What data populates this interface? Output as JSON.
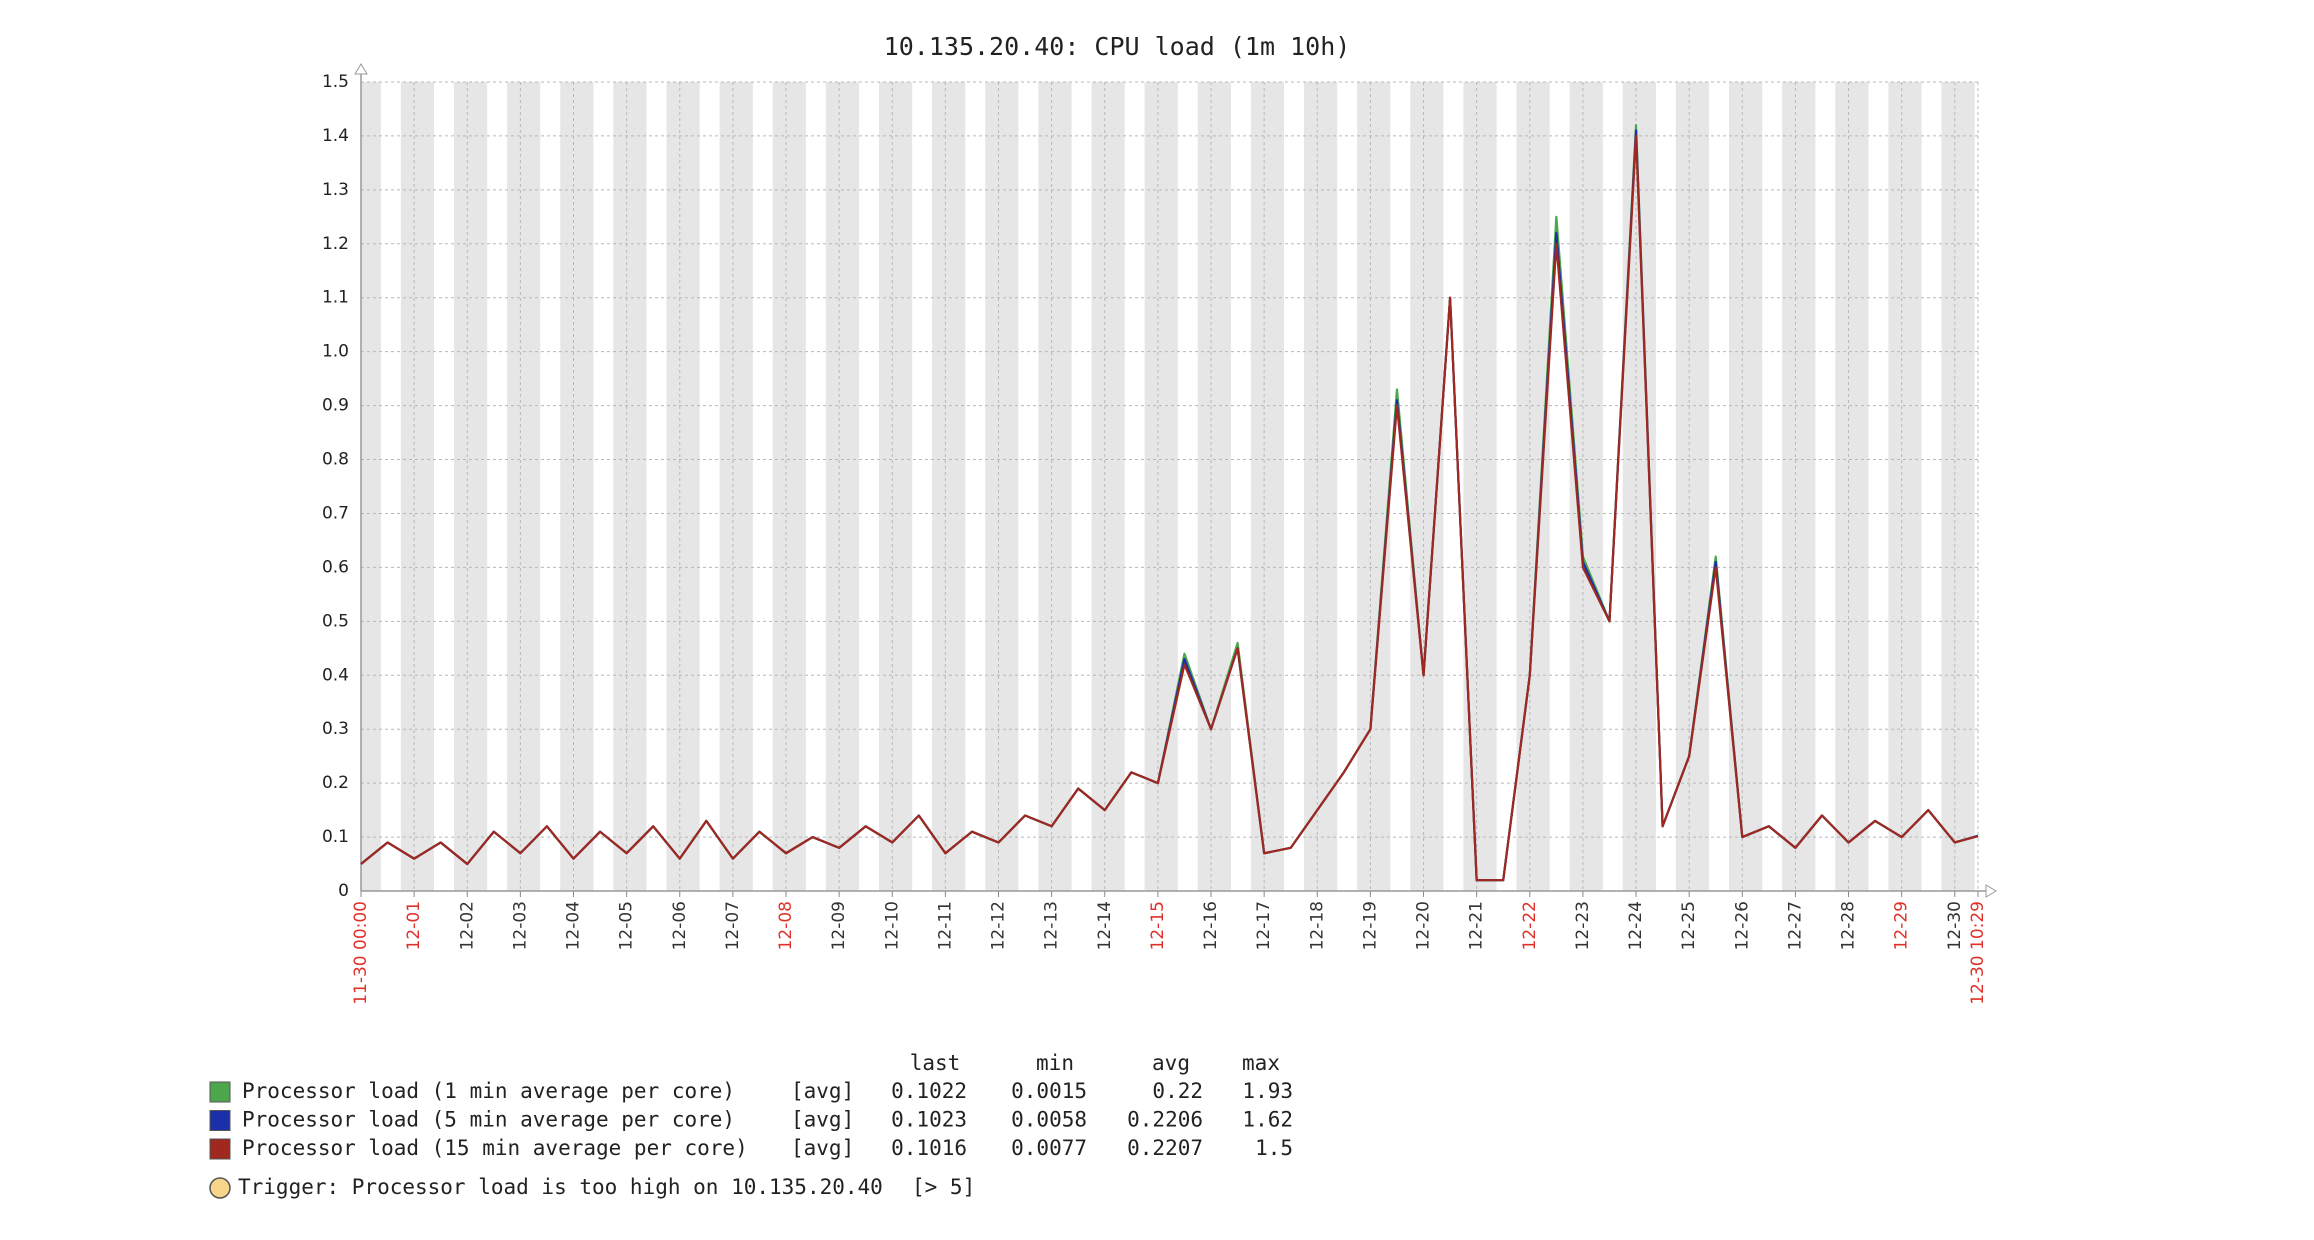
{
  "chart_data": {
    "type": "line",
    "title": "10.135.20.40: CPU load (1m 10h)",
    "x": [
      "11-30 00:00",
      "11-30 12:00",
      "12-01 00:00",
      "12-01 12:00",
      "12-02 00:00",
      "12-02 12:00",
      "12-03 00:00",
      "12-03 12:00",
      "12-04 00:00",
      "12-04 12:00",
      "12-05 00:00",
      "12-05 12:00",
      "12-06 00:00",
      "12-06 12:00",
      "12-07 00:00",
      "12-07 12:00",
      "12-08 00:00",
      "12-08 12:00",
      "12-09 00:00",
      "12-09 12:00",
      "12-10 00:00",
      "12-10 12:00",
      "12-11 00:00",
      "12-11 12:00",
      "12-12 00:00",
      "12-12 12:00",
      "12-13 00:00",
      "12-13 12:00",
      "12-14 00:00",
      "12-14 12:00",
      "12-15 00:00",
      "12-15 12:00",
      "12-16 00:00",
      "12-16 12:00",
      "12-17 00:00",
      "12-17 12:00",
      "12-18 00:00",
      "12-18 12:00",
      "12-19 00:00",
      "12-19 12:00",
      "12-20 00:00",
      "12-20 12:00",
      "12-21 00:00",
      "12-21 12:00",
      "12-22 00:00",
      "12-22 12:00",
      "12-23 00:00",
      "12-23 12:00",
      "12-24 00:00",
      "12-24 12:00",
      "12-25 00:00",
      "12-25 12:00",
      "12-26 00:00",
      "12-26 12:00",
      "12-27 00:00",
      "12-27 12:00",
      "12-28 00:00",
      "12-28 12:00",
      "12-29 00:00",
      "12-29 12:00",
      "12-30 00:00",
      "12-30 10:29"
    ],
    "series": [
      {
        "name": "Processor load (1 min average per core)",
        "function": "[avg]",
        "color": "#4ca64c",
        "values": [
          0.05,
          0.09,
          0.06,
          0.09,
          0.05,
          0.11,
          0.07,
          0.12,
          0.06,
          0.11,
          0.07,
          0.12,
          0.06,
          0.13,
          0.06,
          0.11,
          0.07,
          0.1,
          0.08,
          0.12,
          0.09,
          0.14,
          0.07,
          0.11,
          0.09,
          0.14,
          0.12,
          0.19,
          0.15,
          0.22,
          0.2,
          0.44,
          0.3,
          0.46,
          0.07,
          0.08,
          0.15,
          0.22,
          0.3,
          0.93,
          0.4,
          1.1,
          0.02,
          0.02,
          0.4,
          1.25,
          0.62,
          0.5,
          1.42,
          0.12,
          0.25,
          0.62,
          0.1,
          0.12,
          0.08,
          0.14,
          0.09,
          0.13,
          0.1,
          0.15,
          0.09,
          0.1022
        ],
        "stats": {
          "last": 0.1022,
          "min": 0.0015,
          "avg": 0.22,
          "max": 1.93
        }
      },
      {
        "name": "Processor load (5 min average per core)",
        "function": "[avg]",
        "color": "#1a2fa8",
        "values": [
          0.05,
          0.09,
          0.06,
          0.09,
          0.05,
          0.11,
          0.07,
          0.12,
          0.06,
          0.11,
          0.07,
          0.12,
          0.06,
          0.13,
          0.06,
          0.11,
          0.07,
          0.1,
          0.08,
          0.12,
          0.09,
          0.14,
          0.07,
          0.11,
          0.09,
          0.14,
          0.12,
          0.19,
          0.15,
          0.22,
          0.2,
          0.43,
          0.3,
          0.45,
          0.07,
          0.08,
          0.15,
          0.22,
          0.3,
          0.91,
          0.4,
          1.1,
          0.02,
          0.02,
          0.4,
          1.22,
          0.61,
          0.5,
          1.41,
          0.12,
          0.25,
          0.61,
          0.1,
          0.12,
          0.08,
          0.14,
          0.09,
          0.13,
          0.1,
          0.15,
          0.09,
          0.1023
        ],
        "stats": {
          "last": 0.1023,
          "min": 0.0058,
          "avg": 0.2206,
          "max": 1.62
        }
      },
      {
        "name": "Processor load (15 min average per core)",
        "function": "[avg]",
        "color": "#a0281e",
        "values": [
          0.05,
          0.09,
          0.06,
          0.09,
          0.05,
          0.11,
          0.07,
          0.12,
          0.06,
          0.11,
          0.07,
          0.12,
          0.06,
          0.13,
          0.06,
          0.11,
          0.07,
          0.1,
          0.08,
          0.12,
          0.09,
          0.14,
          0.07,
          0.11,
          0.09,
          0.14,
          0.12,
          0.19,
          0.15,
          0.22,
          0.2,
          0.42,
          0.3,
          0.45,
          0.07,
          0.08,
          0.15,
          0.22,
          0.3,
          0.9,
          0.4,
          1.1,
          0.02,
          0.02,
          0.4,
          1.2,
          0.6,
          0.5,
          1.4,
          0.12,
          0.25,
          0.6,
          0.1,
          0.12,
          0.08,
          0.14,
          0.09,
          0.13,
          0.1,
          0.15,
          0.09,
          0.1016
        ],
        "stats": {
          "last": 0.1016,
          "min": 0.0077,
          "avg": 0.2207,
          "max": 1.5
        }
      }
    ],
    "stat_headers": [
      "last",
      "min",
      "avg",
      "max"
    ],
    "trigger": {
      "label": "Trigger: Processor load is too high on 10.135.20.40",
      "threshold": "[> 5]",
      "color": "#f7d58a"
    },
    "xlim": [
      "11-30 00:00",
      "12-30 10:29"
    ],
    "xticks": [
      "11-30 00:00",
      {
        "value": "12-01 00:00",
        "label": "12-01"
      },
      {
        "value": "12-02 00:00",
        "label": "12-02"
      },
      {
        "value": "12-03 00:00",
        "label": "12-03"
      },
      {
        "value": "12-04 00:00",
        "label": "12-04"
      },
      {
        "value": "12-05 00:00",
        "label": "12-05"
      },
      {
        "value": "12-06 00:00",
        "label": "12-06"
      },
      {
        "value": "12-07 00:00",
        "label": "12-07"
      },
      {
        "value": "12-08 00:00",
        "label": "12-08"
      },
      {
        "value": "12-09 00:00",
        "label": "12-09"
      },
      {
        "value": "12-10 00:00",
        "label": "12-10"
      },
      {
        "value": "12-11 00:00",
        "label": "12-11"
      },
      {
        "value": "12-12 00:00",
        "label": "12-12"
      },
      {
        "value": "12-13 00:00",
        "label": "12-13"
      },
      {
        "value": "12-14 00:00",
        "label": "12-14"
      },
      {
        "value": "12-15 00:00",
        "label": "12-15"
      },
      {
        "value": "12-16 00:00",
        "label": "12-16"
      },
      {
        "value": "12-17 00:00",
        "label": "12-17"
      },
      {
        "value": "12-18 00:00",
        "label": "12-18"
      },
      {
        "value": "12-19 00:00",
        "label": "12-19"
      },
      {
        "value": "12-20 00:00",
        "label": "12-20"
      },
      {
        "value": "12-21 00:00",
        "label": "12-21"
      },
      {
        "value": "12-22 00:00",
        "label": "12-22"
      },
      {
        "value": "12-23 00:00",
        "label": "12-23"
      },
      {
        "value": "12-24 00:00",
        "label": "12-24"
      },
      {
        "value": "12-25 00:00",
        "label": "12-25"
      },
      {
        "value": "12-26 00:00",
        "label": "12-26"
      },
      {
        "value": "12-27 00:00",
        "label": "12-27"
      },
      {
        "value": "12-28 00:00",
        "label": "12-28"
      },
      {
        "value": "12-29 00:00",
        "label": "12-29"
      },
      {
        "value": "12-30 00:00",
        "label": "12-30"
      },
      "12-30 10:29"
    ],
    "xtick_colors": [
      "#e0302a",
      "#e0302a",
      "#333333",
      "#333333",
      "#333333",
      "#333333",
      "#333333",
      "#333333",
      "#e0302a",
      "#333333",
      "#333333",
      "#333333",
      "#333333",
      "#333333",
      "#333333",
      "#e0302a",
      "#333333",
      "#333333",
      "#333333",
      "#333333",
      "#333333",
      "#333333",
      "#e0302a",
      "#333333",
      "#333333",
      "#333333",
      "#333333",
      "#333333",
      "#333333",
      "#e0302a",
      "#333333",
      "#e0302a"
    ],
    "ylim": [
      0,
      1.5
    ],
    "yticks": [
      0,
      0.1,
      0.2,
      0.3,
      0.4,
      0.5,
      0.6,
      0.7,
      0.8,
      0.9,
      {
        "value": 1,
        "label": "1.0"
      },
      1.1,
      1.2,
      1.3,
      1.4,
      1.5
    ],
    "grid": true,
    "background": "#e6e6e6"
  }
}
